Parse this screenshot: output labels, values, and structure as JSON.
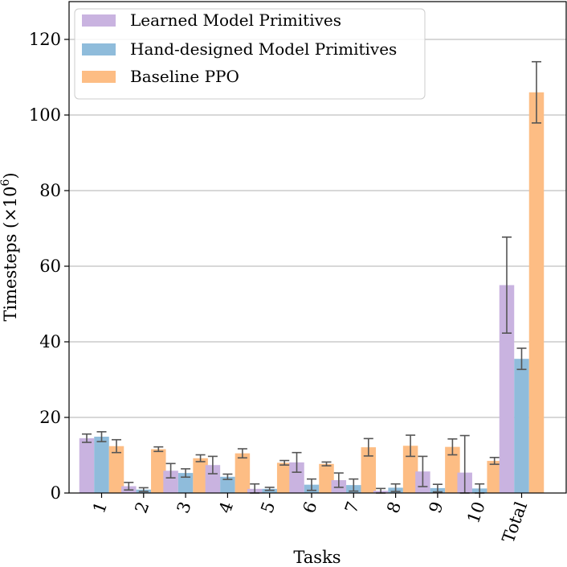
{
  "chart_data": {
    "type": "bar",
    "title": "",
    "xlabel": "Tasks",
    "ylabel": "Timesteps (×10",
    "ylabel_exponent": "6",
    "ylabel_close": ")",
    "ylim": [
      0,
      130
    ],
    "yticks": [
      0,
      20,
      40,
      60,
      80,
      100,
      120
    ],
    "grid": true,
    "legend_position": "top-left",
    "categories": [
      "1",
      "2",
      "3",
      "4",
      "5",
      "6",
      "7",
      "8",
      "9",
      "10",
      "Total"
    ],
    "series": [
      {
        "name": "Learned Model Primitives",
        "color": "#c9b3e0",
        "values": [
          14.5,
          1.8,
          5.9,
          7.4,
          1.1,
          8.1,
          3.4,
          0.6,
          5.7,
          5.4,
          55.0
        ],
        "errors": [
          1.1,
          1.0,
          1.9,
          2.3,
          1.3,
          2.6,
          1.9,
          0.6,
          4.0,
          9.8,
          12.7
        ]
      },
      {
        "name": "Hand-designed Model Primitives",
        "color": "#8fbcdb",
        "values": [
          14.9,
          0.9,
          5.3,
          4.3,
          1.1,
          2.2,
          2.1,
          1.4,
          1.3,
          1.2,
          35.5
        ],
        "errors": [
          1.3,
          0.5,
          1.1,
          0.7,
          0.4,
          1.5,
          1.6,
          1.0,
          1.0,
          1.2,
          2.8
        ]
      },
      {
        "name": "Baseline PPO",
        "color": "#fdbd84",
        "values": [
          12.4,
          11.6,
          9.2,
          10.5,
          8.0,
          7.7,
          12.1,
          12.5,
          12.2,
          8.5,
          106.0
        ],
        "errors": [
          1.7,
          0.6,
          0.9,
          1.2,
          0.6,
          0.5,
          2.3,
          2.8,
          2.1,
          0.9,
          8.1
        ]
      }
    ]
  }
}
